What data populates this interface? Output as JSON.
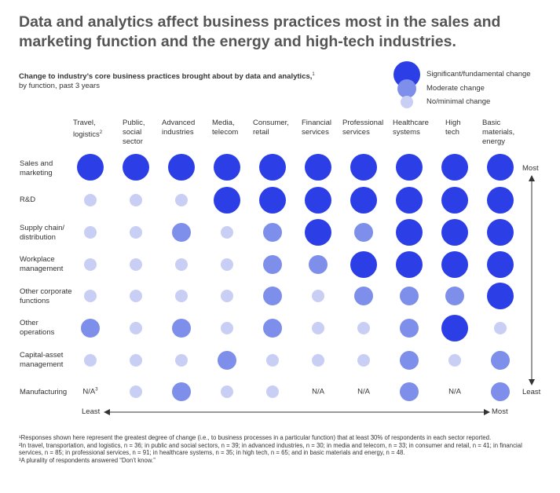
{
  "title": "Data and analytics affect business practices most in the sales and marketing function and the energy and high-tech industries.",
  "subtitle_main": "Change to industry’s core business practices brought about by data and analytics,",
  "subtitle_sup": "1",
  "subtitle_sub": "by function, past 3 years",
  "colors": {
    "significant": "#2c3ee6",
    "moderate": "#7d8fea",
    "minimal": "#c9cff4",
    "axis": "#333333"
  },
  "chart_data": {
    "type": "bubble-matrix",
    "legend": [
      {
        "key": "S",
        "label": "Significant/fundamental change"
      },
      {
        "key": "M",
        "label": "Moderate change"
      },
      {
        "key": "N",
        "label": "No/minimal change"
      }
    ],
    "columns": [
      {
        "label": "Travel, logistics",
        "lines": [
          "Travel,",
          "logistics"
        ],
        "sup": "2"
      },
      {
        "label": "Public, social sector",
        "lines": [
          "Public,",
          "social",
          "sector"
        ],
        "sup": ""
      },
      {
        "label": "Advanced industries",
        "lines": [
          "Advanced",
          "industries"
        ],
        "sup": ""
      },
      {
        "label": "Media, telecom",
        "lines": [
          "Media,",
          "telecom"
        ],
        "sup": ""
      },
      {
        "label": "Consumer, retail",
        "lines": [
          "Consumer,",
          "retail"
        ],
        "sup": ""
      },
      {
        "label": "Financial services",
        "lines": [
          "Financial",
          "services"
        ],
        "sup": ""
      },
      {
        "label": "Professional services",
        "lines": [
          "Professional",
          "services"
        ],
        "sup": ""
      },
      {
        "label": "Healthcare systems",
        "lines": [
          "Healthcare",
          "systems"
        ],
        "sup": ""
      },
      {
        "label": "High tech",
        "lines": [
          "High",
          "tech"
        ],
        "sup": ""
      },
      {
        "label": "Basic materials, energy",
        "lines": [
          "Basic",
          "materials,",
          "energy"
        ],
        "sup": ""
      }
    ],
    "rows": [
      {
        "label": "Sales and marketing",
        "lines": [
          "Sales and",
          "marketing"
        ],
        "values": [
          "S",
          "S",
          "S",
          "S",
          "S",
          "S",
          "S",
          "S",
          "S",
          "S"
        ]
      },
      {
        "label": "R&D",
        "lines": [
          "R&D"
        ],
        "values": [
          "N",
          "N",
          "N",
          "S",
          "S",
          "S",
          "S",
          "S",
          "S",
          "S"
        ]
      },
      {
        "label": "Supply chain/ distribution",
        "lines": [
          "Supply chain/",
          "distribution"
        ],
        "values": [
          "N",
          "N",
          "M",
          "N",
          "M",
          "S",
          "M",
          "S",
          "S",
          "S"
        ]
      },
      {
        "label": "Workplace management",
        "lines": [
          "Workplace",
          "management"
        ],
        "values": [
          "N",
          "N",
          "N",
          "N",
          "M",
          "M",
          "S",
          "S",
          "S",
          "S"
        ]
      },
      {
        "label": "Other corporate functions",
        "lines": [
          "Other corporate",
          "functions"
        ],
        "values": [
          "N",
          "N",
          "N",
          "N",
          "M",
          "N",
          "M",
          "M",
          "M",
          "S"
        ]
      },
      {
        "label": "Other operations",
        "lines": [
          "Other",
          "operations"
        ],
        "values": [
          "M",
          "N",
          "M",
          "N",
          "M",
          "N",
          "N",
          "M",
          "S",
          "N"
        ]
      },
      {
        "label": "Capital-asset management",
        "lines": [
          "Capital-asset",
          "management"
        ],
        "values": [
          "N",
          "N",
          "N",
          "M",
          "N",
          "N",
          "N",
          "M",
          "N",
          "M"
        ]
      },
      {
        "label": "Manufacturing",
        "lines": [
          "Manufacturing"
        ],
        "values": [
          "N/A",
          "N",
          "M",
          "N",
          "N",
          "N/A",
          "N/A",
          "M",
          "N/A",
          "M"
        ]
      }
    ],
    "na_text": "N/A",
    "na_sup_column": 0,
    "na_sup": "3",
    "x_axis": {
      "left_label": "Least",
      "right_label": "Most"
    },
    "y_axis": {
      "top_label": "Most",
      "bottom_label": "Least"
    }
  },
  "footnotes": [
    "¹Responses shown here represent the greatest degree of change (i.e., to business processes in a particular function) that at least 30% of respondents in each sector reported.",
    "²In travel, transportation, and logistics, n = 36; in public and social sectors, n = 39; in advanced industries, n = 30; in media and telecom, n = 33; in consumer and retail, n = 41; in financial services, n = 85; in professional services, n = 91; in healthcare systems, n = 35; in high tech, n = 65; and in basic materials and energy, n = 48.",
    "³A plurality of respondents answered “Don’t know.”"
  ]
}
